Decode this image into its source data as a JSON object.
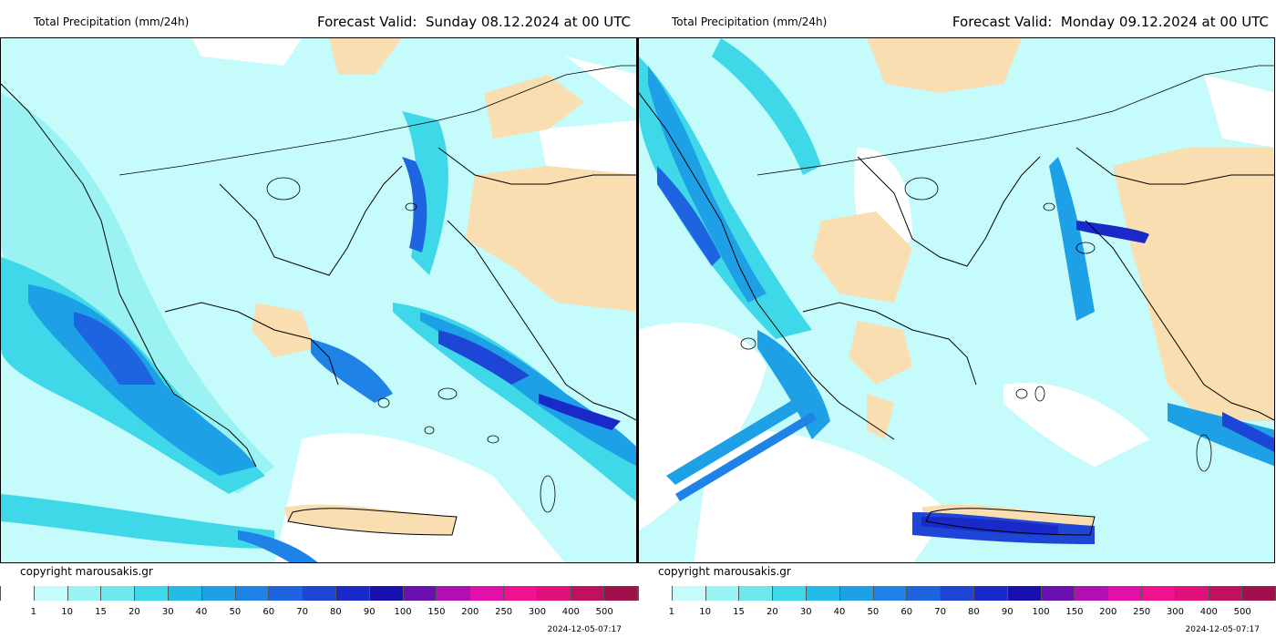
{
  "panels": [
    {
      "title": "Total Precipitation (mm/24h)",
      "forecast_label": "Forecast Valid:",
      "forecast_date": "Sunday 08.12.2024 at 00 UTC",
      "copyright": "copyright marousakis.gr",
      "timestamp": "2024-12-05-07:17"
    },
    {
      "title": "Total Precipitation (mm/24h)",
      "forecast_label": "Forecast Valid:",
      "forecast_date": "Monday 09.12.2024 at 00 UTC",
      "copyright": "copyright marousakis.gr",
      "timestamp": "2024-12-05-07:17"
    }
  ],
  "legend": {
    "labels": [
      "1",
      "10",
      "15",
      "20",
      "30",
      "40",
      "50",
      "60",
      "70",
      "80",
      "90",
      "100",
      "150",
      "200",
      "250",
      "300",
      "400",
      "500"
    ],
    "colors": [
      "#ffffff",
      "#c6fbfb",
      "#9af2f2",
      "#6fe8ec",
      "#3fd8e8",
      "#22bce6",
      "#1ea0e6",
      "#1e82e6",
      "#1e64e0",
      "#1e46d6",
      "#1a2ac8",
      "#1a10b0",
      "#6a10b0",
      "#b010b0",
      "#e010a8",
      "#f01090",
      "#e0107a",
      "#c01060",
      "#a0104a"
    ]
  },
  "map_colors": {
    "sea_light": "#c6fbfb",
    "dry": "#ffffff",
    "land_tan": "#f8deb0",
    "band_1": "#9af2f2",
    "band_2": "#3fd8e8",
    "band_3": "#1ea0e6",
    "band_4": "#1e64e0",
    "band_5": "#1a2ac8"
  }
}
